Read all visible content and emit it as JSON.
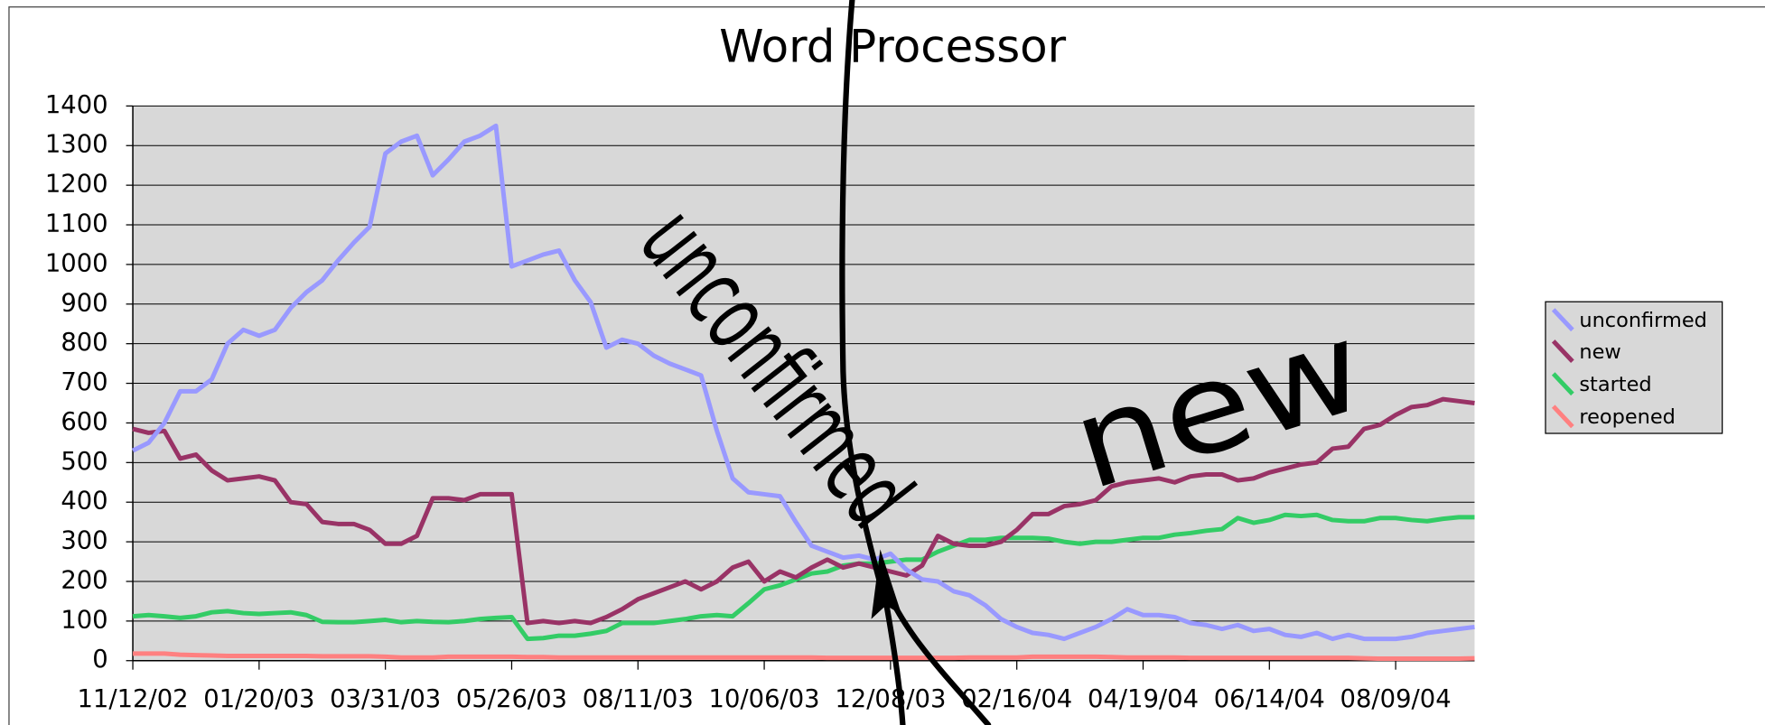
{
  "chart_data": {
    "type": "line",
    "title": "Word Processor",
    "categories": [
      "11/12/02",
      null,
      null,
      null,
      null,
      null,
      null,
      null,
      "01/20/03",
      null,
      null,
      null,
      null,
      null,
      null,
      null,
      "03/31/03",
      null,
      null,
      null,
      null,
      null,
      null,
      null,
      "05/26/03",
      null,
      null,
      null,
      null,
      null,
      null,
      null,
      "08/11/03",
      null,
      null,
      null,
      null,
      null,
      null,
      null,
      "10/06/03",
      null,
      null,
      null,
      null,
      null,
      null,
      null,
      "12/08/03",
      null,
      null,
      null,
      null,
      null,
      null,
      null,
      "02/16/04",
      null,
      null,
      null,
      null,
      null,
      null,
      null,
      "04/19/04",
      null,
      null,
      null,
      null,
      null,
      null,
      null,
      "06/14/04",
      null,
      null,
      null,
      null,
      null,
      null,
      null,
      "08/09/04",
      null,
      null,
      null,
      null,
      null
    ],
    "series": [
      {
        "name": "unconfirmed",
        "color": "#9999ff",
        "values": [
          530,
          550,
          600,
          680,
          680,
          710,
          800,
          835,
          820,
          835,
          890,
          930,
          960,
          1010,
          1055,
          1095,
          1280,
          1310,
          1325,
          1225,
          1265,
          1310,
          1325,
          1350,
          995,
          1010,
          1025,
          1035,
          960,
          905,
          790,
          810,
          800,
          770,
          750,
          735,
          720,
          580,
          460,
          425,
          420,
          415,
          350,
          290,
          275,
          260,
          265,
          255,
          270,
          230,
          205,
          200,
          175,
          165,
          140,
          105,
          85,
          70,
          65,
          55,
          70,
          85,
          105,
          130,
          115,
          115,
          110,
          95,
          90,
          80,
          90,
          75,
          80,
          65,
          60,
          70,
          55,
          65,
          55,
          55,
          55,
          60,
          70,
          75,
          80,
          85
        ]
      },
      {
        "name": "new",
        "color": "#993366",
        "values": [
          585,
          575,
          580,
          510,
          520,
          480,
          455,
          460,
          465,
          455,
          400,
          395,
          350,
          345,
          345,
          330,
          295,
          295,
          315,
          410,
          410,
          405,
          420,
          420,
          420,
          95,
          100,
          95,
          100,
          95,
          110,
          130,
          155,
          170,
          185,
          200,
          180,
          200,
          235,
          250,
          200,
          225,
          210,
          235,
          255,
          235,
          245,
          235,
          225,
          215,
          240,
          315,
          295,
          290,
          290,
          300,
          330,
          370,
          370,
          390,
          395,
          405,
          440,
          450,
          455,
          460,
          450,
          465,
          470,
          470,
          455,
          460,
          475,
          485,
          495,
          500,
          535,
          540,
          585,
          595,
          620,
          640,
          645,
          660,
          655,
          650
        ]
      },
      {
        "name": "started",
        "color": "#33cc66",
        "values": [
          112,
          115,
          112,
          108,
          112,
          122,
          125,
          120,
          118,
          120,
          122,
          115,
          98,
          97,
          97,
          100,
          103,
          97,
          100,
          98,
          97,
          100,
          105,
          108,
          110,
          55,
          57,
          63,
          63,
          68,
          75,
          95,
          95,
          95,
          100,
          105,
          112,
          115,
          112,
          145,
          180,
          190,
          205,
          220,
          225,
          240,
          245,
          245,
          250,
          255,
          255,
          275,
          290,
          305,
          305,
          310,
          310,
          310,
          308,
          300,
          295,
          300,
          300,
          305,
          310,
          310,
          318,
          322,
          328,
          332,
          360,
          348,
          355,
          368,
          365,
          368,
          355,
          352,
          352,
          360,
          360,
          355,
          352,
          358,
          362,
          362
        ]
      },
      {
        "name": "reopened",
        "color": "#ff8080",
        "values": [
          18,
          18,
          18,
          15,
          14,
          13,
          12,
          12,
          12,
          12,
          12,
          12,
          11,
          11,
          11,
          11,
          10,
          8,
          8,
          8,
          10,
          10,
          10,
          10,
          10,
          9,
          9,
          8,
          8,
          8,
          8,
          8,
          8,
          8,
          8,
          8,
          8,
          8,
          8,
          8,
          8,
          8,
          8,
          8,
          7,
          7,
          7,
          7,
          7,
          7,
          7,
          7,
          7,
          8,
          8,
          8,
          8,
          10,
          10,
          10,
          10,
          10,
          9,
          8,
          8,
          8,
          8,
          7,
          7,
          7,
          7,
          7,
          7,
          7,
          7,
          7,
          7,
          7,
          6,
          5,
          5,
          5,
          5,
          5,
          5,
          6
        ]
      }
    ],
    "ylim": [
      0,
      1400
    ],
    "yticks": [
      0,
      100,
      200,
      300,
      400,
      500,
      600,
      700,
      800,
      900,
      1000,
      1100,
      1200,
      1300,
      1400
    ],
    "grid": true,
    "legend": "right",
    "annotations": [
      "unconfirmed",
      "new"
    ]
  }
}
